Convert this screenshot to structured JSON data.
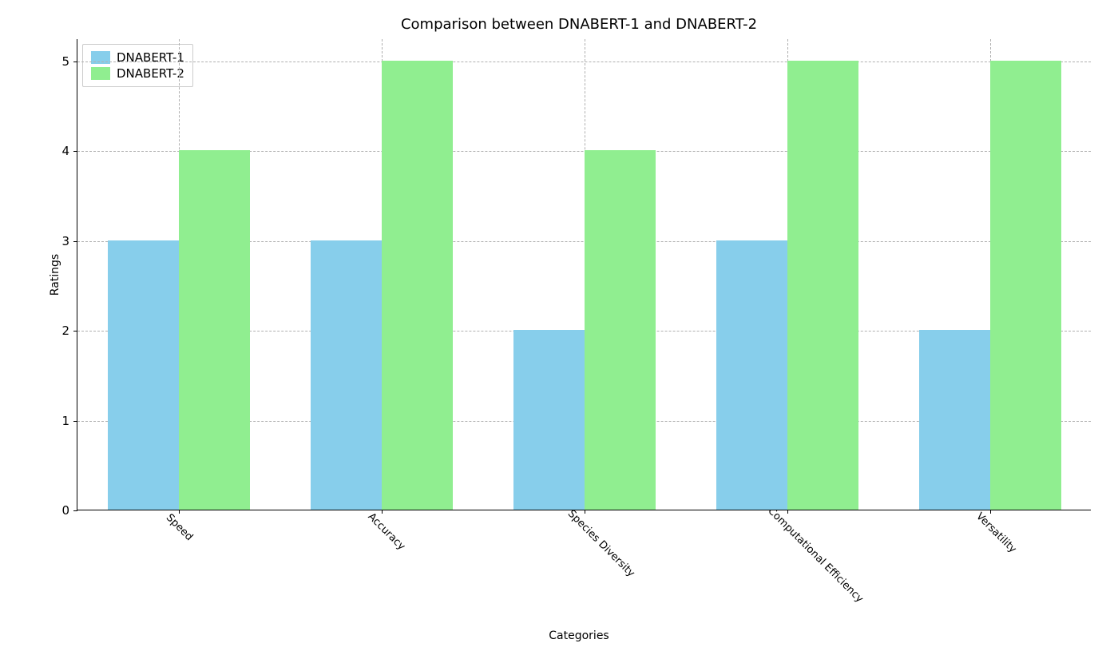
{
  "chart": {
    "type": "bar",
    "title": "Comparison between DNABERT-1 and DNABERT-2",
    "title_fontsize": 18,
    "xlabel": "Categories",
    "ylabel": "Ratings",
    "label_fontsize": 14,
    "tick_fontsize": 15,
    "categories": [
      "Speed",
      "Accuracy",
      "Species Diversity",
      "Computational Efficiency",
      "Versatility"
    ],
    "series": [
      {
        "name": "DNABERT-1",
        "color": "#87ceeb",
        "values": [
          3,
          3,
          2,
          3,
          2
        ]
      },
      {
        "name": "DNABERT-2",
        "color": "#90ee90",
        "values": [
          4,
          5,
          4,
          5,
          5
        ]
      }
    ],
    "ylim": [
      0,
      5.25
    ],
    "yticks": [
      0,
      1,
      2,
      3,
      4,
      5
    ],
    "bar_width": 0.35,
    "group_gap": 0.3,
    "background_color": "#ffffff",
    "grid_color": "#b0b0b0",
    "spine_color": "#000000",
    "xtick_rotation": 45,
    "legend_position": "upper left"
  }
}
